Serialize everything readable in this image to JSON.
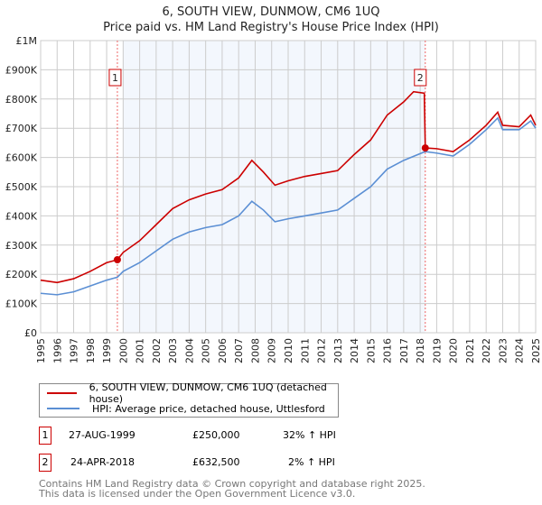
{
  "title": "6, SOUTH VIEW, DUNMOW, CM6 1UQ",
  "subtitle": "Price paid vs. HM Land Registry's House Price Index (HPI)",
  "chart_data": {
    "type": "line",
    "title": "6, SOUTH VIEW, DUNMOW, CM6 1UQ — Price paid vs. HM Land Registry's House Price Index (HPI)",
    "xlim": [
      1995,
      2025
    ],
    "ylim": [
      0,
      1000000
    ],
    "x_ticks": [
      "1995",
      "1996",
      "1997",
      "1998",
      "1999",
      "2000",
      "2001",
      "2002",
      "2003",
      "2004",
      "2005",
      "2006",
      "2007",
      "2008",
      "2009",
      "2010",
      "2011",
      "2012",
      "2013",
      "2014",
      "2015",
      "2016",
      "2017",
      "2018",
      "2019",
      "2020",
      "2021",
      "2022",
      "2023",
      "2024",
      "2025"
    ],
    "y_ticks": [
      {
        "v": 0,
        "label": "£0"
      },
      {
        "v": 100000,
        "label": "£100K"
      },
      {
        "v": 200000,
        "label": "£200K"
      },
      {
        "v": 300000,
        "label": "£300K"
      },
      {
        "v": 400000,
        "label": "£400K"
      },
      {
        "v": 500000,
        "label": "£500K"
      },
      {
        "v": 600000,
        "label": "£600K"
      },
      {
        "v": 700000,
        "label": "£700K"
      },
      {
        "v": 800000,
        "label": "£800K"
      },
      {
        "v": 900000,
        "label": "£900K"
      },
      {
        "v": 1000000,
        "label": "£1M"
      }
    ],
    "grid": true,
    "shaded_range": [
      2000.0,
      2018.3
    ],
    "series": [
      {
        "name": "6, SOUTH VIEW, DUNMOW, CM6 1UQ (detached house)",
        "color": "#cc0000",
        "points": [
          [
            1995,
            180000
          ],
          [
            1996,
            172000
          ],
          [
            1997,
            185000
          ],
          [
            1998,
            210000
          ],
          [
            1999,
            240000
          ],
          [
            1999.65,
            250000
          ],
          [
            2000,
            275000
          ],
          [
            2001,
            315000
          ],
          [
            2002,
            370000
          ],
          [
            2003,
            425000
          ],
          [
            2004,
            455000
          ],
          [
            2005,
            475000
          ],
          [
            2006,
            490000
          ],
          [
            2007,
            530000
          ],
          [
            2007.8,
            590000
          ],
          [
            2008.5,
            550000
          ],
          [
            2009.2,
            505000
          ],
          [
            2010,
            520000
          ],
          [
            2011,
            535000
          ],
          [
            2012,
            545000
          ],
          [
            2013,
            555000
          ],
          [
            2014,
            610000
          ],
          [
            2015,
            660000
          ],
          [
            2016,
            745000
          ],
          [
            2017,
            790000
          ],
          [
            2017.6,
            825000
          ],
          [
            2018.25,
            820000
          ],
          [
            2018.31,
            632500
          ],
          [
            2019,
            630000
          ],
          [
            2020,
            620000
          ],
          [
            2021,
            660000
          ],
          [
            2022,
            710000
          ],
          [
            2022.7,
            755000
          ],
          [
            2023,
            710000
          ],
          [
            2024,
            705000
          ],
          [
            2024.7,
            745000
          ],
          [
            2025,
            710000
          ]
        ]
      },
      {
        "name": "HPI: Average price, detached house, Uttlesford",
        "color": "#5b8fd4",
        "points": [
          [
            1995,
            135000
          ],
          [
            1996,
            130000
          ],
          [
            1997,
            140000
          ],
          [
            1998,
            160000
          ],
          [
            1999,
            180000
          ],
          [
            1999.65,
            190000
          ],
          [
            2000,
            210000
          ],
          [
            2001,
            240000
          ],
          [
            2002,
            280000
          ],
          [
            2003,
            320000
          ],
          [
            2004,
            345000
          ],
          [
            2005,
            360000
          ],
          [
            2006,
            370000
          ],
          [
            2007,
            400000
          ],
          [
            2007.8,
            450000
          ],
          [
            2008.5,
            420000
          ],
          [
            2009.2,
            380000
          ],
          [
            2010,
            390000
          ],
          [
            2011,
            400000
          ],
          [
            2012,
            410000
          ],
          [
            2013,
            420000
          ],
          [
            2014,
            460000
          ],
          [
            2015,
            500000
          ],
          [
            2016,
            560000
          ],
          [
            2017,
            590000
          ],
          [
            2018.3,
            620000
          ],
          [
            2019,
            615000
          ],
          [
            2020,
            605000
          ],
          [
            2021,
            645000
          ],
          [
            2022,
            695000
          ],
          [
            2022.7,
            735000
          ],
          [
            2023,
            695000
          ],
          [
            2024,
            695000
          ],
          [
            2024.7,
            725000
          ],
          [
            2025,
            700000
          ]
        ]
      }
    ],
    "sales": [
      {
        "id": "1",
        "x": 1999.65,
        "y": 250000
      },
      {
        "id": "2",
        "x": 2018.31,
        "y": 632500
      }
    ]
  },
  "legend": {
    "red": "6, SOUTH VIEW, DUNMOW, CM6 1UQ (detached house)",
    "blue": "HPI: Average price, detached house, Uttlesford"
  },
  "transactions": [
    {
      "id": "1",
      "date": "27-AUG-1999",
      "price": "£250,000",
      "hpi": "32% ↑ HPI"
    },
    {
      "id": "2",
      "date": "24-APR-2018",
      "price": "£632,500",
      "hpi": "2% ↑ HPI"
    }
  ],
  "footer": [
    "Contains HM Land Registry data © Crown copyright and database right 2025.",
    "This data is licensed under the Open Government Licence v3.0."
  ]
}
